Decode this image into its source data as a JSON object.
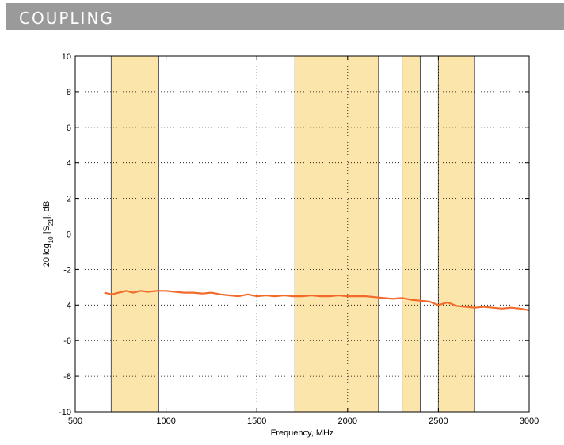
{
  "header": {
    "title": "COUPLING"
  },
  "colors": {
    "band": "#fbe5aa",
    "band_edge": "#555555",
    "trace": "#f26b2a",
    "header_bg": "#9a9a9a"
  },
  "chart_data": {
    "type": "line",
    "title": "",
    "xlabel": "Frequency, MHz",
    "ylabel_parts": {
      "pre": "20 log",
      "sub1": "10",
      "mid": " |S",
      "sub2": "21",
      "post": "|, dB"
    },
    "xlim": [
      500,
      3000
    ],
    "ylim": [
      -10,
      10
    ],
    "xticks": [
      500,
      1000,
      1500,
      2000,
      2500,
      3000
    ],
    "yticks": [
      -10,
      -8,
      -6,
      -4,
      -2,
      0,
      2,
      4,
      6,
      8,
      10
    ],
    "grid": true,
    "shaded_bands": [
      {
        "x0": 698,
        "x1": 960
      },
      {
        "x0": 1710,
        "x1": 2170
      },
      {
        "x0": 2300,
        "x1": 2400
      },
      {
        "x0": 2500,
        "x1": 2700
      }
    ],
    "series": [
      {
        "x": [
          660,
          700,
          740,
          780,
          820,
          860,
          900,
          950,
          1000,
          1050,
          1100,
          1150,
          1200,
          1250,
          1300,
          1350,
          1400,
          1450,
          1500,
          1550,
          1600,
          1650,
          1700,
          1750,
          1800,
          1850,
          1900,
          1950,
          2000,
          2050,
          2100,
          2150,
          2200,
          2250,
          2300,
          2350,
          2400,
          2450,
          2500,
          2550,
          2600,
          2650,
          2700,
          2750,
          2800,
          2850,
          2900,
          2950,
          3000
        ],
        "y": [
          -3.3,
          -3.4,
          -3.3,
          -3.2,
          -3.3,
          -3.2,
          -3.25,
          -3.2,
          -3.2,
          -3.25,
          -3.3,
          -3.3,
          -3.35,
          -3.3,
          -3.4,
          -3.45,
          -3.5,
          -3.4,
          -3.5,
          -3.45,
          -3.5,
          -3.45,
          -3.5,
          -3.5,
          -3.45,
          -3.5,
          -3.5,
          -3.45,
          -3.5,
          -3.5,
          -3.5,
          -3.55,
          -3.6,
          -3.65,
          -3.6,
          -3.7,
          -3.75,
          -3.8,
          -4.0,
          -3.85,
          -4.05,
          -4.1,
          -4.15,
          -4.1,
          -4.15,
          -4.2,
          -4.15,
          -4.2,
          -4.3
        ]
      }
    ]
  }
}
